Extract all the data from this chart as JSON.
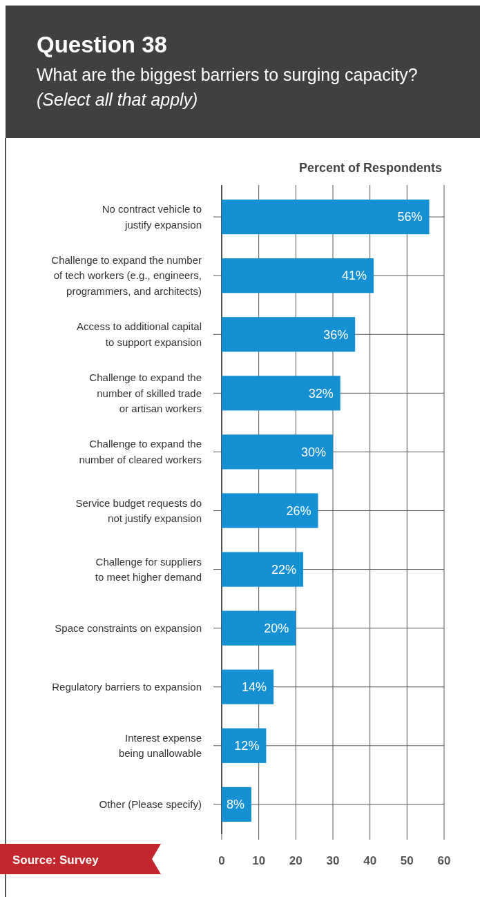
{
  "chart_data": {
    "type": "bar",
    "orientation": "horizontal",
    "title": "Question 38",
    "subtitle": "What are the biggest barriers to surging capacity?\n(Select all that apply)",
    "xlabel": "Percent of Respondents",
    "categories": [
      "No contract vehicle to\njustify expansion",
      "Challenge to expand the number\nof tech workers (e.g., engineers,\nprogrammers, and architects)",
      "Access to additional capital\nto support expansion",
      "Challenge to expand the\nnumber of skilled trade\nor artisan workers",
      "Challenge to expand the\nnumber of cleared workers",
      "Service budget requests do\nnot justify expansion",
      "Challenge for suppliers\nto meet higher demand",
      "Space constraints on expansion",
      "Regulatory barriers to expansion",
      "Interest expense\nbeing unallowable",
      "Other (Please specify)"
    ],
    "values": [
      56,
      41,
      36,
      32,
      30,
      26,
      22,
      20,
      14,
      12,
      8
    ],
    "value_labels": [
      "56%",
      "41%",
      "36%",
      "32%",
      "30%",
      "26%",
      "22%",
      "20%",
      "14%",
      "12%",
      "8%"
    ],
    "color": "#1590d2",
    "xlim": [
      0,
      60
    ],
    "xticks": [
      0,
      10,
      20,
      30,
      40,
      50,
      60
    ],
    "grid": true,
    "annotations": [
      "Source: Survey"
    ]
  }
}
